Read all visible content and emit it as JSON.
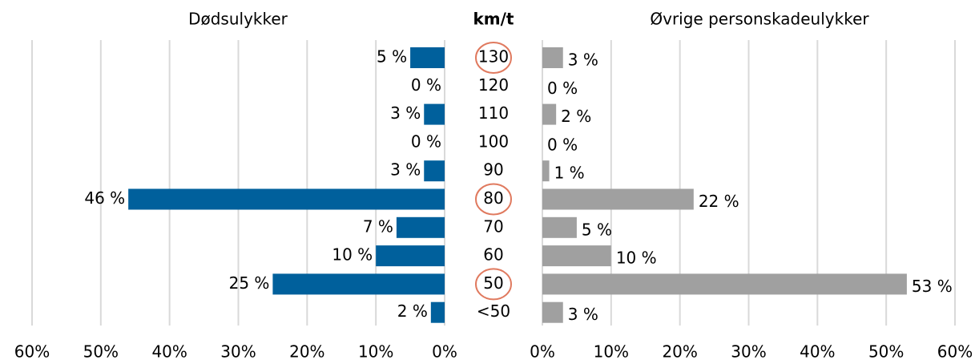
{
  "chart_data": {
    "type": "butterfly",
    "category_title": "km/t",
    "categories": [
      "130",
      "120",
      "110",
      "100",
      "90",
      "80",
      "70",
      "60",
      "50",
      "<50"
    ],
    "highlight": [
      0,
      5,
      8
    ],
    "highlight_color": "#e07a5f",
    "xlim": [
      0,
      60
    ],
    "xticks": [
      {
        "value": 0,
        "label": "0%"
      },
      {
        "value": 10,
        "label": "10%"
      },
      {
        "value": 20,
        "label": "20%"
      },
      {
        "value": 30,
        "label": "30%"
      },
      {
        "value": 40,
        "label": "40%"
      },
      {
        "value": 50,
        "label": "50%"
      },
      {
        "value": 60,
        "label": "60%"
      }
    ],
    "grid": true,
    "series": [
      {
        "name": "Dødsulykker",
        "color": "#00609c",
        "side": "left",
        "values": [
          5,
          0,
          3,
          0,
          3,
          46,
          7,
          10,
          25,
          2
        ],
        "value_labels": [
          "5 %",
          "0 %",
          "3 %",
          "0 %",
          "3 %",
          "46 %",
          "7 %",
          "10 %",
          "25 %",
          "2 %"
        ]
      },
      {
        "name": "Øvrige personskadeulykker",
        "color": "#a0a0a0",
        "side": "right",
        "values": [
          3,
          0,
          2,
          0,
          1,
          22,
          5,
          10,
          53,
          3
        ],
        "value_labels": [
          "3 %",
          "0 %",
          "2 %",
          "0 %",
          "1 %",
          "22 %",
          "5 %",
          "10 %",
          "53 %",
          "3 %"
        ]
      }
    ]
  }
}
